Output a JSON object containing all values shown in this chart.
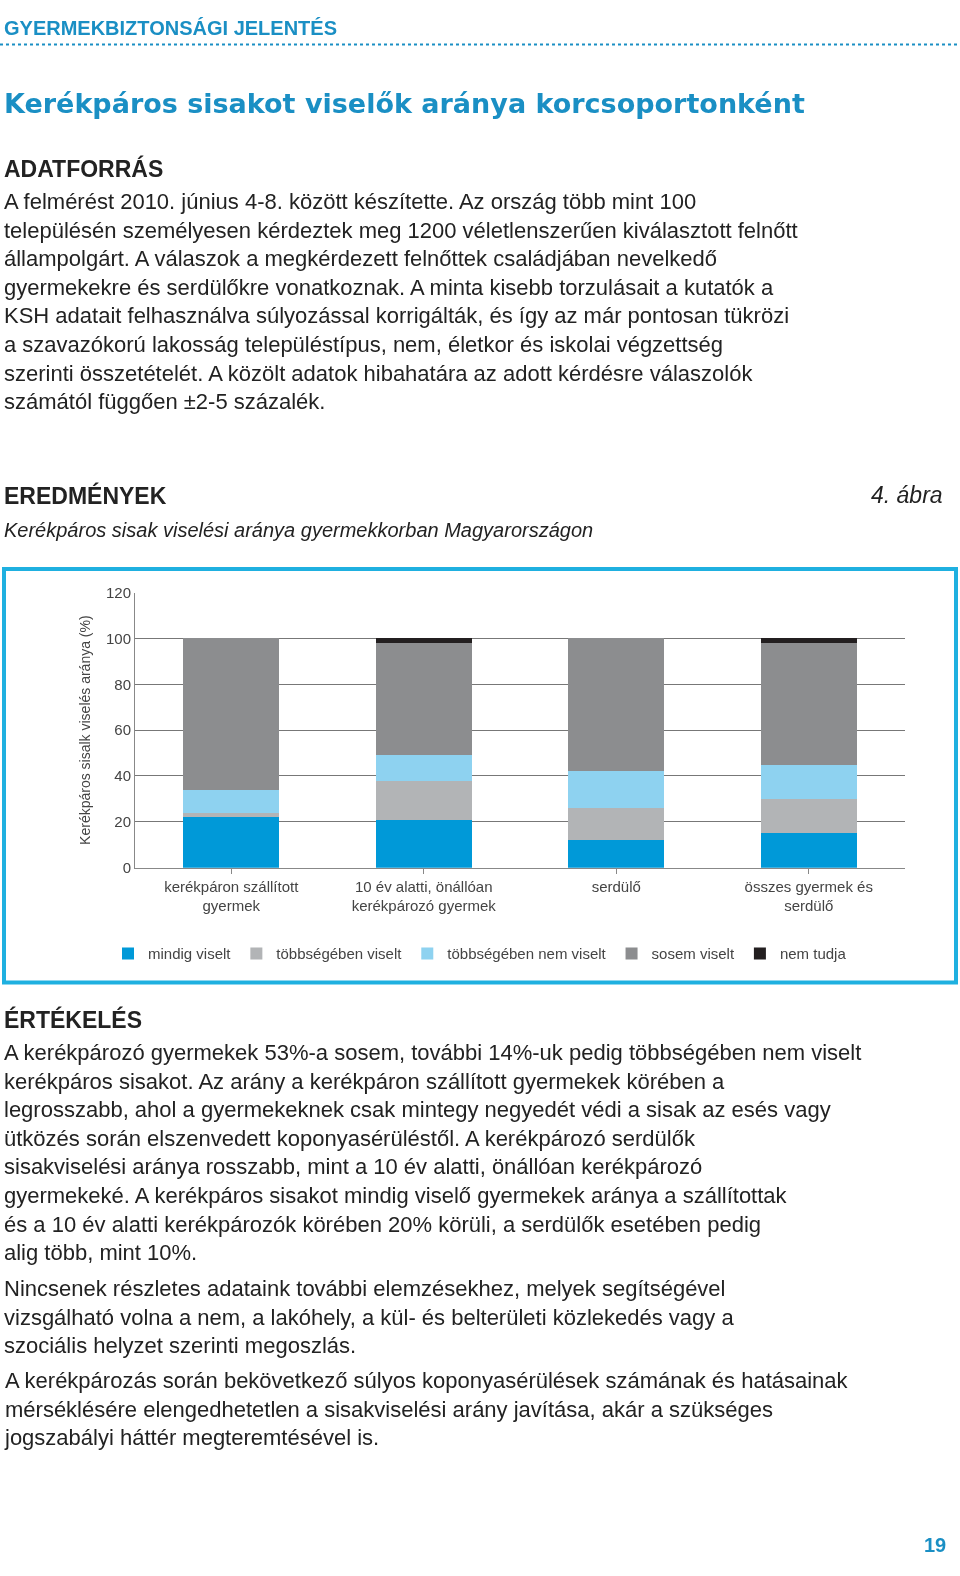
{
  "chart_data": {
    "type": "bar",
    "stacked": true,
    "title": "Kerékpáros sisakot viselők aránya korcsoportonként",
    "subtitle": "Kerékpáros sisak viselési aránya gyermekkorban Magyarországon",
    "ylabel": "Kerékpáros sisalk viselés aránya (%)",
    "categories": [
      "kerékpáron szállított gyermek",
      "10 év alatti, önállóan kerékpározó gyermek",
      "serdülő",
      "összes gyermek és serdülő"
    ],
    "series": [
      {
        "name": "mindig viselt",
        "color": "#0099d8",
        "values": [
          22,
          21,
          12,
          15
        ]
      },
      {
        "name": "többségében viselt",
        "color": "#b2b4b6",
        "values": [
          2,
          17,
          14,
          15
        ]
      },
      {
        "name": "többségében nem viselt",
        "color": "#8ed2f0",
        "values": [
          10,
          11,
          16,
          15
        ]
      },
      {
        "name": "sosem viselt",
        "color": "#8c8d8f",
        "values": [
          66,
          49,
          58,
          53
        ]
      },
      {
        "name": "nem tudja",
        "color": "#231f20",
        "values": [
          0,
          2,
          0,
          2
        ]
      }
    ],
    "ylim": [
      0,
      120
    ],
    "yticks": [
      0,
      20,
      40,
      60,
      80,
      100,
      120
    ],
    "grid": "y",
    "legend": "bottom",
    "annotations": [
      "GYERMEKBIZTONSÁGI JELENTÉS",
      "ADATFORRÁS",
      "A felmérést 2010. június 4-8. között készítette. Az ország több mint 100 településén személyesen kérdeztek meg 1200 véletlenszerűen kiválasztott felnőtt állampolgárt. A válaszok a megkérdezett felnőttek családjában nevelkedő gyermekekre és serdülőkre vonatkoznak. A minta kisebb torzulásait a kutatók a KSH adatait felhasználva súlyozással korrigálták, és így az már pontosan tükrözi a szavazókorú lakosság településtípus, nem, életkor és iskolai végzettség szerinti összetételét. A közölt adatok hibahatára az adott kérdésre válaszolók számától függően ±2-5 százalék.",
      "EREDMÉNYEK",
      "4. ábra",
      "ÉRTÉKELÉS",
      "A kerékpározó gyermekek 53%-a sosem, további 14%-uk pedig többségében nem viselt kerékpáros sisakot. Az arány a kerékpáron szállított gyermekek körében a legrosszabb, ahol a gyermekeknek csak mintegy negyedét védi a sisak az esés vagy ütközés során elszenvedett koponyasérüléstől. A kerékpározó serdülők sisakviselési aránya rosszabb, mint a 10 év alatti, önállóan kerékpározó gyermekeké. A kerékpáros sisakot mindig viselő gyermekek aránya a szállítottak és a 10 év alatti kerékpározók körében 20% körüli, a serdülők esetében pedig alig több, mint 10%.",
      "Nincsenek részletes adataink további elemzésekhez, melyek segítségével vizsgálható volna a nem, a lakóhely, a kül- és belterületi közlekedés vagy a szociális helyzet szerinti megoszlás.",
      "A kerékpározás során bekövetkező súlyos koponyasérülések számának és hatásainak mérséklésére elengedhetetlen a sisakviselési arány javítása, akár a szükséges jogszabályi háttér megteremtésével is.",
      "19"
    ]
  }
}
